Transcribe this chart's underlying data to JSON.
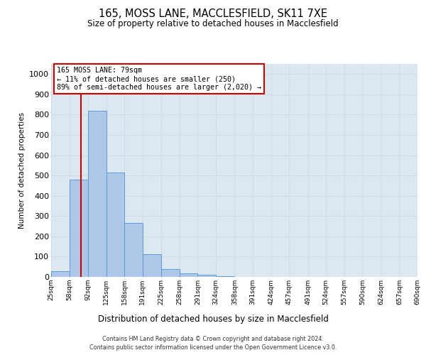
{
  "title1": "165, MOSS LANE, MACCLESFIELD, SK11 7XE",
  "title2": "Size of property relative to detached houses in Macclesfield",
  "xlabel": "Distribution of detached houses by size in Macclesfield",
  "ylabel": "Number of detached properties",
  "annotation_line1": "165 MOSS LANE: 79sqm",
  "annotation_line2": "← 11% of detached houses are smaller (250)",
  "annotation_line3": "89% of semi-detached houses are larger (2,020) →",
  "property_size_sqm": 79,
  "bin_edges": [
    25,
    58,
    92,
    125,
    158,
    191,
    225,
    258,
    291,
    324,
    358,
    391,
    424,
    457,
    491,
    524,
    557,
    590,
    624,
    657,
    690
  ],
  "bar_heights": [
    28,
    480,
    820,
    515,
    265,
    112,
    38,
    18,
    10,
    5,
    0,
    0,
    0,
    0,
    0,
    0,
    0,
    0,
    0,
    0
  ],
  "bar_color": "#aec6e8",
  "bar_edge_color": "#5b9bd5",
  "marker_line_color": "#cc0000",
  "annotation_box_edge_color": "#cc0000",
  "grid_color": "#d0dce8",
  "background_color": "#dce8f0",
  "ylim": [
    0,
    1050
  ],
  "yticks": [
    0,
    100,
    200,
    300,
    400,
    500,
    600,
    700,
    800,
    900,
    1000
  ],
  "tick_labels": [
    "25sqm",
    "58sqm",
    "92sqm",
    "125sqm",
    "158sqm",
    "191sqm",
    "225sqm",
    "258sqm",
    "291sqm",
    "324sqm",
    "358sqm",
    "391sqm",
    "424sqm",
    "457sqm",
    "491sqm",
    "524sqm",
    "557sqm",
    "590sqm",
    "624sqm",
    "657sqm",
    "690sqm"
  ],
  "footer_line1": "Contains HM Land Registry data © Crown copyright and database right 2024.",
  "footer_line2": "Contains public sector information licensed under the Open Government Licence v3.0."
}
